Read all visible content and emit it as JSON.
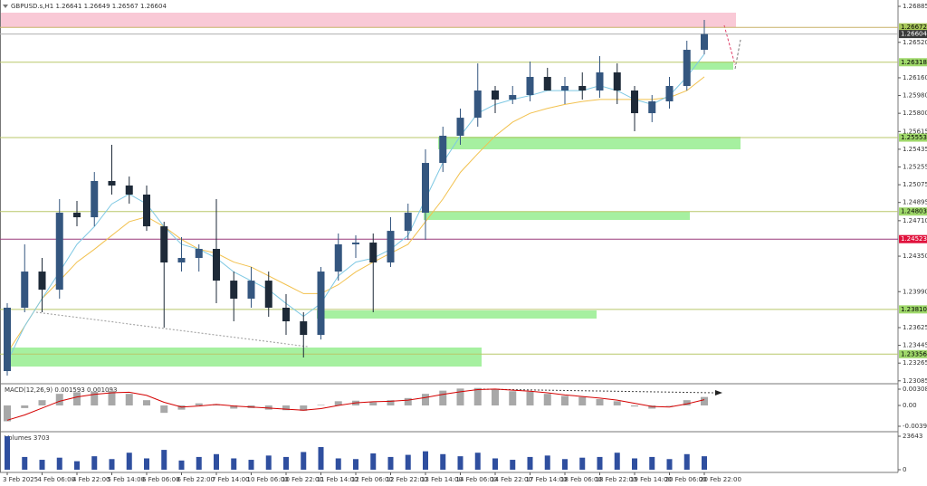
{
  "chart_data": {
    "type": "candlestick",
    "header": "GBPUSD.s,H1  1.26641 1.26649 1.26567 1.26604",
    "categories": [
      "3 Feb 2025",
      null,
      "4 Feb 06:00",
      null,
      "4 Feb 22:00",
      null,
      "5 Feb 14:00",
      null,
      "6 Feb 06:00",
      null,
      "6 Feb 22:00",
      null,
      "7 Feb 14:00",
      null,
      "10 Feb 06:00",
      null,
      "10 Feb 22:00",
      null,
      "11 Feb 14:00",
      null,
      "12 Feb 06:00",
      null,
      "12 Feb 22:00",
      null,
      "13 Feb 14:00",
      null,
      "14 Feb 06:00",
      null,
      "14 Feb 22:00",
      null,
      "17 Feb 14:00",
      null,
      "18 Feb 06:00",
      null,
      "18 Feb 22:00",
      null,
      "19 Feb 14:00",
      null,
      "20 Feb 06:00",
      null,
      "20 Feb 22:00"
    ],
    "ohlc": [
      [
        1.23184,
        1.23873,
        1.23138,
        1.23827
      ],
      [
        1.23827,
        1.2447,
        1.23781,
        1.24194
      ],
      [
        1.24194,
        1.24332,
        1.23781,
        1.2401
      ],
      [
        1.2401,
        1.24929,
        1.23919,
        1.24791
      ],
      [
        1.24791,
        1.24911,
        1.24653,
        1.24745
      ],
      [
        1.24745,
        1.25204,
        1.24653,
        1.25113
      ],
      [
        1.25113,
        1.2548,
        1.24975,
        1.25067
      ],
      [
        1.25067,
        1.25158,
        1.24883,
        1.24975
      ],
      [
        1.24975,
        1.25067,
        1.24607,
        1.24653
      ],
      [
        1.24653,
        1.24699,
        1.23625,
        1.24286
      ],
      [
        1.24286,
        1.24543,
        1.24194,
        1.24332
      ],
      [
        1.24332,
        1.2447,
        1.24194,
        1.24424
      ],
      [
        1.24424,
        1.24929,
        1.23873,
        1.24102
      ],
      [
        1.24102,
        1.24194,
        1.23689,
        1.23919
      ],
      [
        1.23919,
        1.2424,
        1.23827,
        1.24102
      ],
      [
        1.24102,
        1.24194,
        1.23735,
        1.23827
      ],
      [
        1.23827,
        1.23965,
        1.23551,
        1.23689
      ],
      [
        1.23689,
        1.23781,
        1.23322,
        1.23551
      ],
      [
        1.23551,
        1.2424,
        1.23505,
        1.24194
      ],
      [
        1.24194,
        1.2458,
        1.24102,
        1.2447
      ],
      [
        1.2447,
        1.24562,
        1.24332,
        1.24488
      ],
      [
        1.24488,
        1.2458,
        1.23781,
        1.24286
      ],
      [
        1.24286,
        1.24745,
        1.2424,
        1.24607
      ],
      [
        1.24607,
        1.24883,
        1.24516,
        1.24791
      ],
      [
        1.24791,
        1.25434,
        1.24516,
        1.25296
      ],
      [
        1.25296,
        1.25664,
        1.25204,
        1.25572
      ],
      [
        1.25572,
        1.25847,
        1.2548,
        1.25755
      ],
      [
        1.25755,
        1.26306,
        1.25664,
        1.26031
      ],
      [
        1.26031,
        1.26077,
        1.25801,
        1.25939
      ],
      [
        1.25939,
        1.26077,
        1.25893,
        1.25985
      ],
      [
        1.25985,
        1.26325,
        1.25921,
        1.26169
      ],
      [
        1.26169,
        1.26261,
        1.26031,
        1.26031
      ],
      [
        1.26031,
        1.26169,
        1.25893,
        1.26077
      ],
      [
        1.26077,
        1.26215,
        1.25939,
        1.26031
      ],
      [
        1.26031,
        1.2638,
        1.25957,
        1.26215
      ],
      [
        1.26215,
        1.26306,
        1.25893,
        1.26031
      ],
      [
        1.26031,
        1.26077,
        1.25618,
        1.25801
      ],
      [
        1.25801,
        1.25985,
        1.2571,
        1.25921
      ],
      [
        1.25921,
        1.26169,
        1.25847,
        1.26077
      ],
      [
        1.26077,
        1.26536,
        1.26031,
        1.26444
      ],
      [
        1.26444,
        1.26747,
        1.26398,
        1.26604
      ]
    ],
    "bull_color": "#34567f",
    "bear_color": "#1e2a38",
    "ma_fast": {
      "color": "#7ec8e3",
      "values": [
        1.2328,
        1.2364,
        1.2392,
        1.2419,
        1.2447,
        1.2465,
        1.2488,
        1.2498,
        1.2488,
        1.2465,
        1.2447,
        1.2442,
        1.2433,
        1.2419,
        1.241,
        1.2401,
        1.2387,
        1.2374,
        1.2387,
        1.2415,
        1.2429,
        1.2433,
        1.2442,
        1.2456,
        1.2493,
        1.253,
        1.2557,
        1.258,
        1.2589,
        1.2594,
        1.2598,
        1.2603,
        1.2603,
        1.2603,
        1.2608,
        1.2603,
        1.2594,
        1.2589,
        1.2598,
        1.2617,
        1.264
      ]
    },
    "ma_slow": {
      "color": "#f2c14e",
      "values": [
        1.2337,
        1.2364,
        1.2392,
        1.241,
        1.2429,
        1.2442,
        1.2456,
        1.247,
        1.2475,
        1.2465,
        1.2452,
        1.2442,
        1.2438,
        1.2429,
        1.2424,
        1.2415,
        1.2406,
        1.2397,
        1.2397,
        1.2406,
        1.2419,
        1.2429,
        1.2438,
        1.2447,
        1.247,
        1.2493,
        1.252,
        1.2539,
        1.2557,
        1.2571,
        1.258,
        1.2585,
        1.2589,
        1.2592,
        1.2594,
        1.2594,
        1.2594,
        1.2594,
        1.2596,
        1.2603,
        1.2617
      ]
    },
    "ylim": [
      1.23074,
      1.26931
    ],
    "yticks": [
      1.26885,
      {
        "value": 1.2652,
        "label": "1.26520"
      },
      {
        "value": 1.2616,
        "label": "1.26160"
      },
      {
        "value": 1.2598,
        "label": "1.25980"
      },
      {
        "value": 1.258,
        "label": "1.25800"
      },
      1.25615,
      1.25435,
      1.25255,
      1.25075,
      1.24895,
      {
        "value": 1.2471,
        "label": "1.24710"
      },
      {
        "value": 1.2435,
        "label": "1.24350"
      },
      {
        "value": 1.2399,
        "label": "1.23990"
      },
      1.23625,
      1.23445,
      1.23265,
      1.23085
    ],
    "levels": [
      {
        "price": 1.26672,
        "line": "#c9b26a",
        "box": "#a8c85a",
        "text_color": "#000"
      },
      {
        "price": 1.26604,
        "line": "#b0b0b0",
        "box": "#3a3a3a",
        "text_color": "#fff"
      },
      {
        "price": 1.26318,
        "line": "#b8c76a",
        "box": "#9fd86a",
        "text_color": "#000"
      },
      {
        "price": 1.25553,
        "line": "#b8c76a",
        "box": "#9fd86a",
        "text_color": "#000"
      },
      {
        "price": 1.24803,
        "line": "#b8c76a",
        "box": "#9fd86a",
        "text_color": "#000"
      },
      {
        "price": 1.24523,
        "line": "#9a3a7a",
        "box": "#e0123c",
        "text_color": "#fff"
      },
      {
        "price": 1.2381,
        "label": "1.23810",
        "line": "#b8c76a",
        "box": "#9fd86a",
        "text_color": "#000"
      },
      {
        "price": 1.23356,
        "line": "#b8c76a",
        "box": "#9fd86a",
        "text_color": "#000"
      }
    ],
    "macd": {
      "label": "MACD(12,26,9) 0.001593 0.001093",
      "ylim": [
        -0.0048,
        0.00377
      ],
      "yticks": [
        0.003084,
        {
          "value": 0,
          "label": "0.00"
        },
        -0.003945
      ],
      "hist_color": "#a8a8a8",
      "signal_color": "#d40000",
      "histogram": [
        -0.003,
        -0.0005,
        0.001,
        0.0022,
        0.0025,
        0.0026,
        0.0028,
        0.0022,
        0.001,
        -0.0014,
        -0.0008,
        0.0004,
        0.0002,
        -0.0006,
        -0.0005,
        -0.0008,
        -0.0009,
        -0.001,
        0.0001,
        0.0008,
        0.0009,
        0.0006,
        0.001,
        0.0014,
        0.0022,
        0.0028,
        0.0032,
        0.0033,
        0.003,
        0.0027,
        0.0026,
        0.0022,
        0.0018,
        0.0016,
        0.0012,
        0.0008,
        -0.0002,
        -0.0006,
        0,
        0.001,
        0.0016
      ],
      "signal": [
        -0.0028,
        -0.0018,
        -0.0005,
        0.0008,
        0.0016,
        0.0021,
        0.0024,
        0.0025,
        0.0019,
        0.0006,
        -0.0003,
        -0.0001,
        0.0002,
        -0.0001,
        -0.0003,
        -0.0005,
        -0.0007,
        -0.0009,
        -0.0006,
        0,
        0.0005,
        0.0007,
        0.0008,
        0.001,
        0.0015,
        0.0021,
        0.0026,
        0.003,
        0.0031,
        0.0029,
        0.0027,
        0.0024,
        0.002,
        0.0017,
        0.0014,
        0.001,
        0.0004,
        -0.0002,
        -0.0003,
        0.0003,
        0.0011
      ]
    },
    "volumes": {
      "label": "Volumes 3703",
      "ylim": [
        0,
        25560
      ],
      "yticks": [
        23643,
        0
      ],
      "color": "#2f4f9f",
      "values": [
        23643,
        9000,
        7000,
        8500,
        6000,
        9500,
        7500,
        12000,
        8000,
        14000,
        6500,
        9000,
        11000,
        8000,
        7000,
        10000,
        9000,
        12500,
        16000,
        8000,
        7500,
        11500,
        9000,
        10500,
        13000,
        11000,
        9500,
        12000,
        8000,
        7000,
        9000,
        10000,
        7500,
        8500,
        9000,
        12000,
        8000,
        9000,
        7500,
        11000,
        9500
      ]
    }
  }
}
